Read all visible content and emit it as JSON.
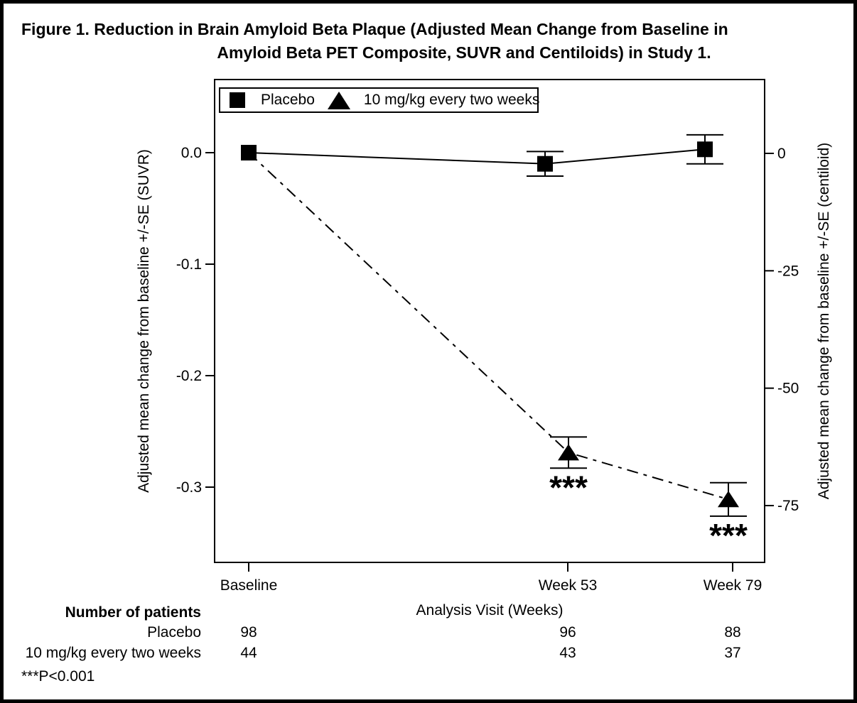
{
  "figure": {
    "title_line1": "Figure 1. Reduction in Brain Amyloid Beta Plaque (Adjusted Mean Change from Baseline in",
    "title_line2": "Amyloid Beta PET Composite, SUVR and Centiloids) in Study 1."
  },
  "chart_data": {
    "type": "line",
    "x_categories": [
      "Baseline",
      "Week 53",
      "Week 79"
    ],
    "xlabel": "Analysis Visit (Weeks)",
    "left_axis": {
      "label": "Adjusted mean change from baseline +/-SE (SUVR)",
      "ticks": [
        "0.0",
        "-0.1",
        "-0.2",
        "-0.3"
      ],
      "tick_values": [
        0,
        -0.1,
        -0.2,
        -0.3
      ]
    },
    "right_axis": {
      "label": "Adjusted mean change from baseline +/-SE (centiloid)",
      "ticks": [
        "0",
        "-25",
        "-50",
        "-75"
      ],
      "tick_values": [
        0,
        -25,
        -50,
        -75
      ]
    },
    "series": [
      {
        "name": "Placebo",
        "marker": "square",
        "line_style": "solid",
        "values_suvr": [
          0.0,
          -0.01,
          0.003
        ],
        "se_suvr": [
          0,
          0.011,
          0.013
        ],
        "values_centiloid": [
          0,
          -2.4,
          0.8
        ],
        "significance": [
          "",
          "",
          ""
        ]
      },
      {
        "name": "10 mg/kg every two weeks",
        "marker": "triangle",
        "line_style": "dash-dot",
        "values_suvr": [
          0.0,
          -0.269,
          -0.311
        ],
        "se_suvr": [
          0,
          0.014,
          0.015
        ],
        "values_centiloid": [
          0,
          -63.5,
          -73.5
        ],
        "significance": [
          "",
          "***",
          "***"
        ]
      }
    ],
    "legend_position": "top-left-inside",
    "grid": false,
    "colors": {
      "foreground": "#000000",
      "background": "#ffffff"
    }
  },
  "patients_table": {
    "heading": "Number of patients",
    "rows": [
      {
        "label": "Placebo",
        "counts": [
          "98",
          "96",
          "88"
        ]
      },
      {
        "label": "10 mg/kg every two weeks",
        "counts": [
          "44",
          "43",
          "37"
        ]
      }
    ]
  },
  "footnote": "***P<0.001"
}
